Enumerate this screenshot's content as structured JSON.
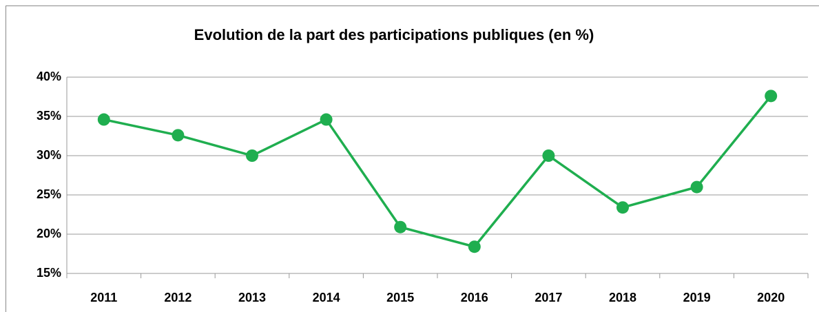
{
  "chart_data": {
    "type": "line",
    "title": "Evolution de la part des participations publiques (en %)",
    "categories": [
      "2011",
      "2012",
      "2013",
      "2014",
      "2015",
      "2016",
      "2017",
      "2018",
      "2019",
      "2020"
    ],
    "series": [
      {
        "name": "Part des participations publiques",
        "color": "#1fae4f",
        "values": [
          34.6,
          32.6,
          30.0,
          34.6,
          20.9,
          18.4,
          30.0,
          23.4,
          26.0,
          37.6
        ]
      }
    ],
    "ylim": [
      15,
      40
    ],
    "yticks": [
      {
        "value": 15,
        "label": "15%"
      },
      {
        "value": 20,
        "label": "20%"
      },
      {
        "value": 25,
        "label": "25%"
      },
      {
        "value": 30,
        "label": "30%"
      },
      {
        "value": 35,
        "label": "35%"
      },
      {
        "value": 40,
        "label": "40%"
      }
    ],
    "grid": true
  }
}
